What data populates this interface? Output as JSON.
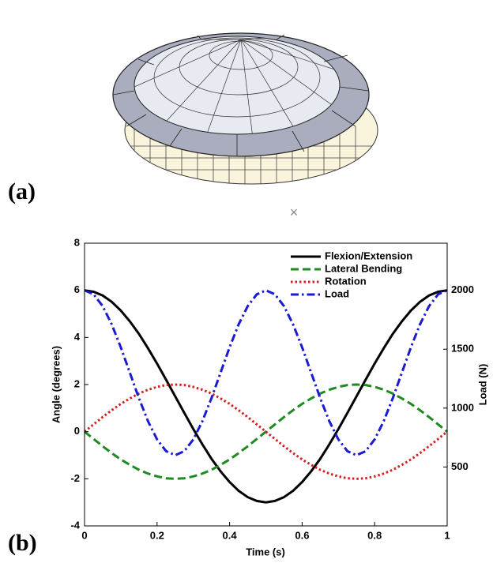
{
  "chart_data": {
    "type": "line",
    "annotations": [
      "(a)",
      "(b)",
      "×"
    ],
    "xlabel": "Time (s)",
    "ylabel": "Angle (degrees)",
    "y2label": "Load (N)",
    "x": [
      0,
      0.025,
      0.05,
      0.075,
      0.1,
      0.125,
      0.15,
      0.175,
      0.2,
      0.225,
      0.25,
      0.275,
      0.3,
      0.325,
      0.35,
      0.375,
      0.4,
      0.425,
      0.45,
      0.475,
      0.5,
      0.525,
      0.55,
      0.575,
      0.6,
      0.625,
      0.65,
      0.675,
      0.7,
      0.725,
      0.75,
      0.775,
      0.8,
      0.825,
      0.85,
      0.875,
      0.9,
      0.925,
      0.95,
      0.975,
      1
    ],
    "xlim": [
      0,
      1
    ],
    "xticks": [
      0,
      0.2,
      0.4,
      0.6,
      0.8,
      1
    ],
    "ylim": [
      -4,
      8
    ],
    "yticks": [
      -4,
      -2,
      0,
      2,
      4,
      6,
      8
    ],
    "y2lim": [
      0,
      2400
    ],
    "y2ticks": [
      500,
      1000,
      1500,
      2000
    ],
    "legend": "upper right",
    "series": [
      {
        "name": "Flexion/Extension",
        "color": "#000000",
        "linestyle": "solid",
        "values": [
          6,
          5.94,
          5.78,
          5.51,
          5.14,
          4.68,
          4.15,
          3.54,
          2.89,
          2.2,
          1.5,
          0.8,
          0.11,
          -0.54,
          -1.15,
          -1.68,
          -2.14,
          -2.51,
          -2.78,
          -2.94,
          -3,
          -2.94,
          -2.78,
          -2.51,
          -2.14,
          -1.68,
          -1.15,
          -0.54,
          0.11,
          0.8,
          1.5,
          2.2,
          2.89,
          3.54,
          4.15,
          4.68,
          5.14,
          5.51,
          5.78,
          5.94,
          6
        ]
      },
      {
        "name": "Lateral Bending",
        "color": "#1f8a1f",
        "linestyle": "dashed",
        "values": [
          0,
          -0.31,
          -0.62,
          -0.91,
          -1.18,
          -1.41,
          -1.62,
          -1.78,
          -1.9,
          -1.98,
          -2,
          -1.98,
          -1.9,
          -1.78,
          -1.62,
          -1.41,
          -1.18,
          -0.91,
          -0.62,
          -0.31,
          0,
          0.31,
          0.62,
          0.91,
          1.18,
          1.41,
          1.62,
          1.78,
          1.9,
          1.98,
          2,
          1.98,
          1.9,
          1.78,
          1.62,
          1.41,
          1.18,
          0.91,
          0.62,
          0.31,
          0
        ]
      },
      {
        "name": "Rotation",
        "color": "#d42020",
        "linestyle": "dotted",
        "values": [
          0,
          0.31,
          0.62,
          0.91,
          1.18,
          1.41,
          1.62,
          1.78,
          1.9,
          1.98,
          2,
          1.98,
          1.9,
          1.78,
          1.62,
          1.41,
          1.18,
          0.91,
          0.62,
          0.31,
          0,
          -0.31,
          -0.62,
          -0.91,
          -1.18,
          -1.41,
          -1.62,
          -1.78,
          -1.9,
          -1.98,
          -2,
          -1.98,
          -1.9,
          -1.78,
          -1.62,
          -1.41,
          -1.18,
          -0.91,
          -0.62,
          -0.31,
          0
        ]
      },
      {
        "name": "Load",
        "color": "#1a1ad2",
        "linestyle": "dashdot",
        "axis": "y2",
        "values": [
          2000,
          1966,
          1866,
          1711,
          1516,
          1300,
          1084,
          889,
          734,
          634,
          600,
          634,
          734,
          889,
          1084,
          1300,
          1516,
          1711,
          1866,
          1966,
          2000,
          1966,
          1866,
          1711,
          1516,
          1300,
          1084,
          889,
          734,
          634,
          600,
          634,
          734,
          889,
          1084,
          1300,
          1516,
          1711,
          1866,
          1966,
          2000
        ]
      }
    ]
  }
}
